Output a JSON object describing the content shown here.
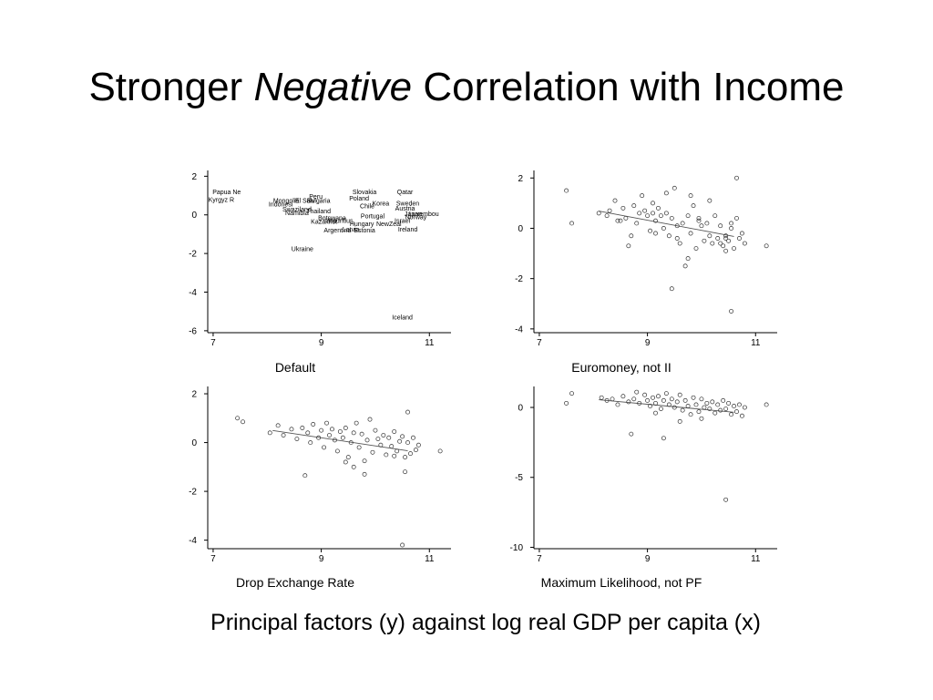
{
  "slide": {
    "title_part1": "Stronger ",
    "title_emphasis": "Negative",
    "title_part2": " Correlation with Income",
    "caption": "Principal factors (y) against log real GDP per capita (x)"
  },
  "chart_data": [
    {
      "type": "scatter",
      "name": "Default",
      "xlim": [
        6.9,
        11.4
      ],
      "ylim": [
        -6.1,
        2.3
      ],
      "xticks": [
        7,
        9,
        11
      ],
      "yticks": [
        2,
        0,
        -2,
        -4,
        -6
      ],
      "marker": "text",
      "points": [
        {
          "x": 7.25,
          "y": 1.2,
          "label": "Papua Ne"
        },
        {
          "x": 7.15,
          "y": 0.8,
          "label": "Kyrgyz R"
        },
        {
          "x": 8.35,
          "y": 0.75,
          "label": "Mongolia"
        },
        {
          "x": 8.25,
          "y": 0.55,
          "label": "Indonesi"
        },
        {
          "x": 8.55,
          "y": 0.3,
          "label": "Swaziland"
        },
        {
          "x": 8.55,
          "y": 0.1,
          "label": "Namibia"
        },
        {
          "x": 8.95,
          "y": 0.2,
          "label": "Thailand"
        },
        {
          "x": 8.9,
          "y": 0.95,
          "label": "Peru"
        },
        {
          "x": 8.7,
          "y": 0.75,
          "label": "El Salv"
        },
        {
          "x": 8.95,
          "y": 0.75,
          "label": "Bulgaria"
        },
        {
          "x": 9.2,
          "y": -0.15,
          "label": "Botswana"
        },
        {
          "x": 9.05,
          "y": -0.35,
          "label": "Kazakhst"
        },
        {
          "x": 9.35,
          "y": -0.3,
          "label": "Mauritius"
        },
        {
          "x": 9.3,
          "y": -0.8,
          "label": "Argentina"
        },
        {
          "x": 9.55,
          "y": -0.75,
          "label": "Latvia"
        },
        {
          "x": 9.8,
          "y": -0.8,
          "label": "Estonia"
        },
        {
          "x": 9.75,
          "y": -0.45,
          "label": "Hungary"
        },
        {
          "x": 9.95,
          "y": -0.05,
          "label": "Portugal"
        },
        {
          "x": 9.8,
          "y": 1.2,
          "label": "Slovakia"
        },
        {
          "x": 9.7,
          "y": 0.85,
          "label": "Poland"
        },
        {
          "x": 9.85,
          "y": 0.45,
          "label": "Chile"
        },
        {
          "x": 10.1,
          "y": 0.6,
          "label": "Korea"
        },
        {
          "x": 10.25,
          "y": -0.45,
          "label": "NewZeal"
        },
        {
          "x": 10.5,
          "y": -0.3,
          "label": "Israel"
        },
        {
          "x": 10.6,
          "y": 0.6,
          "label": "Sweden"
        },
        {
          "x": 10.55,
          "y": 0.35,
          "label": "Austria"
        },
        {
          "x": 10.7,
          "y": 0.05,
          "label": "Japan"
        },
        {
          "x": 10.75,
          "y": -0.1,
          "label": "Norway"
        },
        {
          "x": 10.55,
          "y": 1.2,
          "label": "Qatar"
        },
        {
          "x": 10.9,
          "y": 0.05,
          "label": "Luxembou"
        },
        {
          "x": 10.6,
          "y": -0.75,
          "label": "Ireland"
        },
        {
          "x": 8.65,
          "y": -1.75,
          "label": "Ukraine"
        },
        {
          "x": 10.5,
          "y": -5.3,
          "label": "Iceland"
        }
      ]
    },
    {
      "type": "scatter",
      "name": "Euromoney, not II",
      "xlim": [
        6.9,
        11.4
      ],
      "ylim": [
        -4.15,
        2.3
      ],
      "xticks": [
        7,
        9,
        11
      ],
      "yticks": [
        2,
        0,
        -2,
        -4
      ],
      "marker": "circle",
      "x": [
        7.5,
        7.6,
        8.1,
        8.25,
        8.3,
        8.4,
        8.45,
        8.55,
        8.6,
        8.65,
        8.75,
        8.8,
        8.85,
        8.9,
        9.0,
        9.05,
        9.1,
        9.15,
        9.2,
        9.25,
        9.3,
        9.35,
        9.4,
        9.45,
        9.5,
        9.55,
        9.6,
        9.65,
        9.7,
        9.75,
        9.8,
        9.85,
        9.9,
        9.95,
        10.0,
        10.05,
        10.1,
        10.15,
        10.2,
        10.25,
        10.3,
        10.35,
        10.4,
        10.45,
        10.5,
        10.55,
        10.6,
        10.65,
        10.7,
        10.75,
        10.8,
        11.2,
        8.5,
        8.7,
        8.95,
        9.15,
        9.35,
        9.55,
        9.75,
        9.95,
        10.15,
        10.35,
        10.45,
        10.55,
        10.65,
        9.45,
        9.8,
        10.55,
        9.1,
        10.45
      ],
      "y": [
        1.5,
        0.2,
        0.6,
        0.5,
        0.7,
        1.1,
        0.3,
        0.8,
        0.4,
        -0.7,
        0.9,
        0.2,
        0.6,
        1.3,
        0.5,
        -0.1,
        1.0,
        0.3,
        0.8,
        0.5,
        0.0,
        0.6,
        -0.3,
        0.4,
        1.6,
        0.1,
        -0.6,
        0.2,
        -1.5,
        0.5,
        -0.2,
        0.9,
        -0.8,
        0.4,
        0.1,
        -0.5,
        0.2,
        -0.3,
        -0.6,
        0.5,
        -0.4,
        0.1,
        -0.7,
        -0.3,
        -0.5,
        0.2,
        -0.8,
        0.4,
        -0.4,
        -0.2,
        -0.6,
        -0.7,
        0.3,
        -0.3,
        0.7,
        -0.2,
        1.4,
        -0.4,
        -1.2,
        0.3,
        1.1,
        -0.6,
        -0.9,
        0.0,
        2.0,
        -2.4,
        1.3,
        -3.3,
        0.6,
        -0.4
      ]
    },
    {
      "type": "scatter",
      "name": "Drop Exchange Rate",
      "xlim": [
        6.9,
        11.4
      ],
      "ylim": [
        -4.35,
        2.3
      ],
      "xticks": [
        7,
        9,
        11
      ],
      "yticks": [
        2,
        0,
        -2,
        -4
      ],
      "marker": "circle",
      "x": [
        7.45,
        7.55,
        8.05,
        8.2,
        8.3,
        8.45,
        8.55,
        8.65,
        8.75,
        8.8,
        8.85,
        8.95,
        9.0,
        9.05,
        9.1,
        9.15,
        9.2,
        9.25,
        9.3,
        9.35,
        9.4,
        9.45,
        9.5,
        9.55,
        9.6,
        9.65,
        9.7,
        9.75,
        9.8,
        9.85,
        9.9,
        9.95,
        10.0,
        10.05,
        10.1,
        10.15,
        10.2,
        10.25,
        10.3,
        10.35,
        10.4,
        10.45,
        10.5,
        10.55,
        10.6,
        10.65,
        10.7,
        10.75,
        10.8,
        11.2,
        8.7,
        9.6,
        9.8,
        10.6,
        10.55,
        9.45,
        10.35,
        10.5
      ],
      "y": [
        1.0,
        0.85,
        0.4,
        0.7,
        0.3,
        0.55,
        0.15,
        0.6,
        0.4,
        0.0,
        0.75,
        0.2,
        0.5,
        -0.2,
        0.8,
        0.3,
        0.55,
        0.1,
        -0.35,
        0.45,
        0.2,
        0.6,
        -0.6,
        0.0,
        0.4,
        0.8,
        -0.2,
        0.35,
        -0.75,
        0.1,
        0.95,
        -0.4,
        0.5,
        0.15,
        -0.1,
        0.3,
        -0.5,
        0.2,
        -0.15,
        0.45,
        -0.35,
        0.05,
        0.25,
        -0.6,
        0.0,
        -0.45,
        0.2,
        -0.3,
        -0.1,
        -0.35,
        -1.35,
        -1.0,
        -1.3,
        1.25,
        -1.2,
        -0.8,
        -0.55,
        -4.2
      ]
    },
    {
      "type": "scatter",
      "name": "Maximum Likelihood, not PF",
      "xlim": [
        6.9,
        11.4
      ],
      "ylim": [
        -10.1,
        1.5
      ],
      "xticks": [
        7,
        9,
        11
      ],
      "yticks": [
        0,
        -5,
        -10
      ],
      "marker": "circle",
      "x": [
        7.5,
        7.6,
        8.15,
        8.25,
        8.35,
        8.45,
        8.55,
        8.65,
        8.75,
        8.8,
        8.85,
        8.95,
        9.0,
        9.05,
        9.1,
        9.15,
        9.2,
        9.25,
        9.3,
        9.35,
        9.4,
        9.45,
        9.5,
        9.55,
        9.6,
        9.65,
        9.7,
        9.75,
        9.8,
        9.85,
        9.9,
        9.95,
        10.0,
        10.05,
        10.1,
        10.15,
        10.2,
        10.25,
        10.3,
        10.35,
        10.4,
        10.45,
        10.5,
        10.55,
        10.6,
        10.65,
        10.7,
        10.75,
        10.8,
        11.2,
        8.7,
        9.3,
        9.6,
        10.0,
        10.45,
        9.15
      ],
      "y": [
        0.3,
        1.0,
        0.7,
        0.5,
        0.6,
        0.2,
        0.8,
        0.4,
        0.6,
        1.1,
        0.3,
        0.9,
        0.5,
        0.1,
        0.7,
        0.3,
        0.8,
        -0.1,
        0.5,
        1.0,
        0.2,
        0.6,
        0.0,
        0.4,
        0.9,
        -0.2,
        0.5,
        0.1,
        -0.5,
        0.7,
        0.2,
        -0.3,
        0.6,
        0.0,
        0.3,
        -0.1,
        0.4,
        -0.4,
        0.2,
        -0.2,
        0.5,
        -0.1,
        0.3,
        -0.5,
        0.1,
        -0.3,
        0.2,
        -0.6,
        0.0,
        0.2,
        -1.9,
        -2.2,
        -1.0,
        -0.8,
        -6.6,
        -0.4
      ]
    }
  ]
}
